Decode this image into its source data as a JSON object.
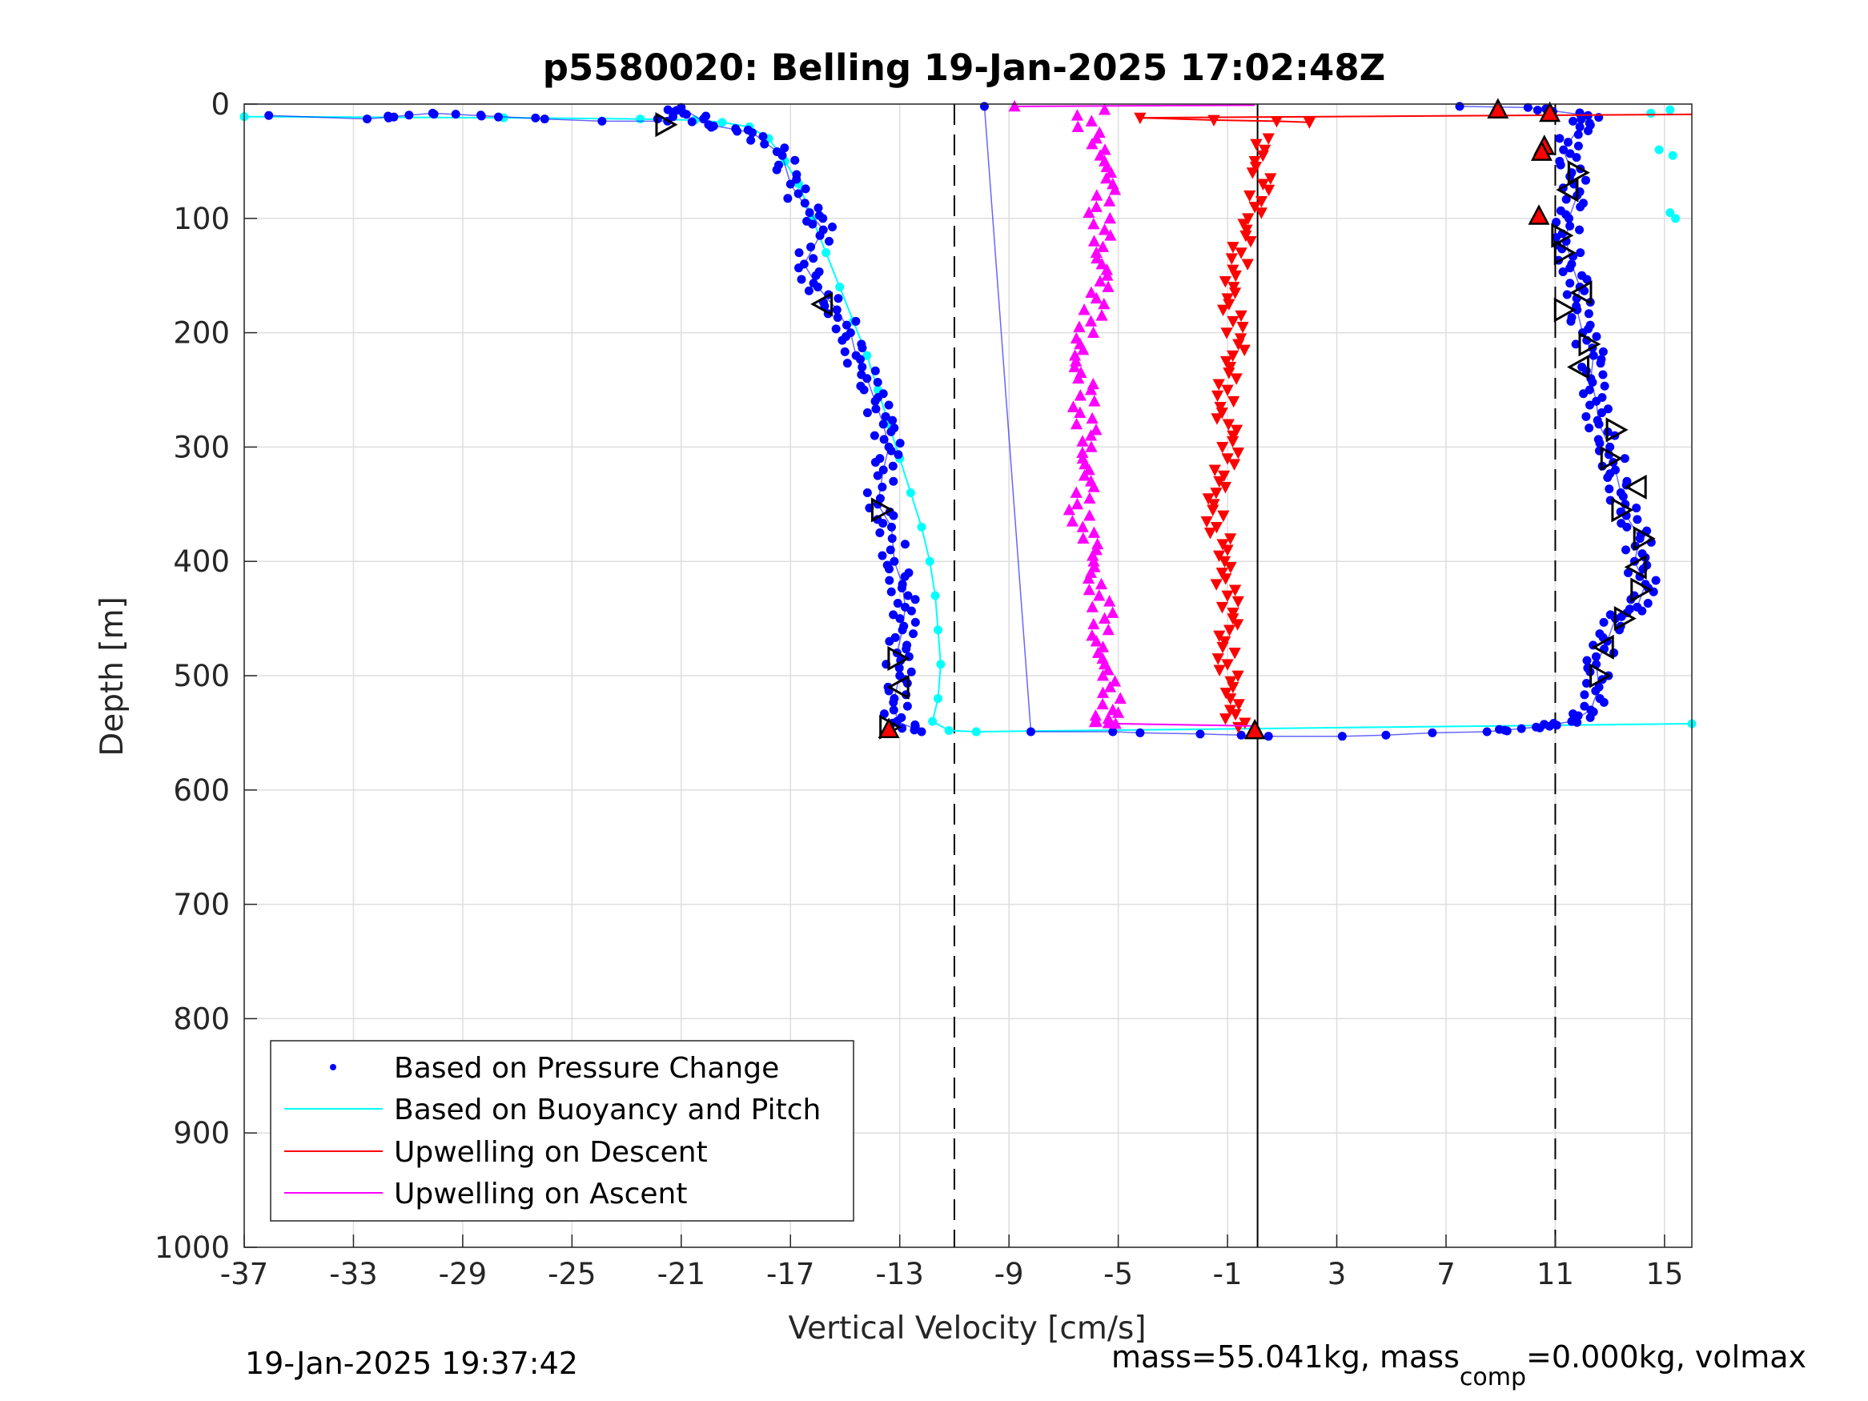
{
  "title": "p5580020: Belling 19-Jan-2025 17:02:48Z",
  "footer": {
    "timestamp": "19-Jan-2025 19:37:42",
    "mass_prefix": "mass=55.041kg, mass",
    "mass_sub": "comp",
    "mass_suffix": "=0.000kg, volmax"
  },
  "legend": {
    "entries": [
      {
        "label": "Based on Pressure Change",
        "color": "#0000ff",
        "style": "dot"
      },
      {
        "label": "Based on Buoyancy and Pitch",
        "color": "#00ffff",
        "style": "line"
      },
      {
        "label": "Upwelling on Descent",
        "color": "#ff0000",
        "style": "line"
      },
      {
        "label": "Upwelling on Ascent",
        "color": "#ff00ff",
        "style": "line"
      }
    ],
    "placement": "bottom-left"
  },
  "chart_data": {
    "type": "scatter",
    "title": "p5580020: Belling 19-Jan-2025 17:02:48Z",
    "xlabel": "Vertical Velocity [cm/s]",
    "ylabel": "Depth [m]",
    "xlim": [
      -37,
      16
    ],
    "ylim": [
      0,
      1000
    ],
    "y_reversed": true,
    "grid": true,
    "xticks": [
      "-37",
      "-33",
      "-29",
      "-25",
      "-21",
      "-17",
      "-13",
      "-9",
      "-5",
      "-1",
      "3",
      "7",
      "11",
      "15"
    ],
    "yticks": [
      "0",
      "100",
      "200",
      "300",
      "400",
      "500",
      "600",
      "700",
      "800",
      "900",
      "1000"
    ],
    "reference_lines": [
      {
        "x": -11,
        "style": "dashed",
        "color": "#000000"
      },
      {
        "x": 0.1,
        "style": "solid",
        "color": "#000000"
      },
      {
        "x": 11,
        "style": "dashed",
        "color": "#000000"
      }
    ],
    "series": [
      {
        "name": "Based on Pressure Change",
        "marker": "dot",
        "color": "#0000ff",
        "profiles": [
          {
            "segment": "descent",
            "points": [
              [
                -36.1,
                10
              ],
              [
                -32.5,
                13
              ],
              [
                -30.1,
                8
              ],
              [
                -26.0,
                13
              ],
              [
                -23.9,
                15
              ],
              [
                -21.5,
                15
              ],
              [
                -21.0,
                3
              ],
              [
                -20.0,
                18
              ],
              [
                -18.4,
                25
              ],
              [
                -17.3,
                45
              ],
              [
                -17.0,
                70
              ],
              [
                -16.3,
                95
              ],
              [
                -15.8,
                110
              ],
              [
                -16.5,
                140
              ],
              [
                -16.0,
                160
              ],
              [
                -15.3,
                180
              ],
              [
                -14.8,
                200
              ],
              [
                -14.6,
                220
              ],
              [
                -14.2,
                240
              ],
              [
                -13.9,
                260
              ],
              [
                -13.6,
                280
              ],
              [
                -13.4,
                300
              ],
              [
                -13.6,
                320
              ],
              [
                -13.8,
                350
              ],
              [
                -13.3,
                370
              ],
              [
                -13.2,
                400
              ],
              [
                -12.9,
                420
              ],
              [
                -12.8,
                440
              ],
              [
                -12.9,
                460
              ],
              [
                -13.1,
                480
              ],
              [
                -13.0,
                500
              ],
              [
                -13.2,
                520
              ],
              [
                -13.1,
                540
              ],
              [
                -12.2,
                549
              ]
            ]
          },
          {
            "segment": "ascent",
            "points": [
              [
                -9.9,
                2
              ],
              [
                -8.2,
                549
              ],
              [
                -5.2,
                549
              ],
              [
                -4.2,
                550
              ],
              [
                -2.0,
                551
              ],
              [
                -0.5,
                552
              ],
              [
                0.5,
                553
              ],
              [
                3.2,
                553
              ],
              [
                4.8,
                552
              ],
              [
                6.5,
                550
              ],
              [
                8.5,
                549
              ],
              [
                10.3,
                545
              ],
              [
                11.6,
                540
              ],
              [
                12.3,
                530
              ],
              [
                12.6,
                510
              ],
              [
                12.5,
                490
              ],
              [
                12.9,
                470
              ],
              [
                13.2,
                450
              ],
              [
                14.0,
                440
              ],
              [
                14.3,
                420
              ],
              [
                13.9,
                400
              ],
              [
                14.1,
                380
              ],
              [
                13.6,
                360
              ],
              [
                13.4,
                340
              ],
              [
                13.2,
                320
              ],
              [
                13.0,
                300
              ],
              [
                12.6,
                280
              ],
              [
                12.5,
                260
              ],
              [
                12.3,
                240
              ],
              [
                12.4,
                220
              ],
              [
                12.0,
                200
              ],
              [
                11.8,
                180
              ],
              [
                11.9,
                160
              ],
              [
                11.6,
                140
              ],
              [
                11.4,
                120
              ],
              [
                11.5,
                100
              ],
              [
                11.8,
                80
              ],
              [
                11.6,
                60
              ],
              [
                11.3,
                40
              ],
              [
                11.9,
                20
              ],
              [
                12.2,
                10
              ],
              [
                10.0,
                3
              ],
              [
                7.5,
                2
              ]
            ]
          }
        ]
      },
      {
        "name": "Based on Buoyancy and Pitch",
        "marker": "line",
        "color": "#00ffff",
        "profiles": [
          {
            "segment": "descent",
            "points": [
              [
                -37,
                11
              ],
              [
                -27.5,
                12
              ],
              [
                -22.5,
                13
              ],
              [
                -20.5,
                14
              ],
              [
                -19.5,
                16
              ],
              [
                -18.5,
                20
              ],
              [
                -17.8,
                30
              ],
              [
                -17.2,
                50
              ],
              [
                -16.7,
                70
              ],
              [
                -16.2,
                100
              ],
              [
                -15.7,
                130
              ],
              [
                -15.2,
                160
              ],
              [
                -14.7,
                190
              ],
              [
                -14.2,
                220
              ],
              [
                -13.8,
                250
              ],
              [
                -13.4,
                280
              ],
              [
                -13.0,
                310
              ],
              [
                -12.6,
                340
              ],
              [
                -12.2,
                370
              ],
              [
                -11.9,
                400
              ],
              [
                -11.7,
                430
              ],
              [
                -11.6,
                460
              ],
              [
                -11.5,
                490
              ],
              [
                -11.6,
                520
              ],
              [
                -11.8,
                540
              ],
              [
                -11.2,
                548
              ],
              [
                -10.2,
                549
              ]
            ]
          },
          {
            "segment": "ascent",
            "points": [
              [
                -10.2,
                549
              ],
              [
                16,
                542
              ]
            ]
          },
          {
            "segment": "surface",
            "points": [
              [
                14.5,
                8
              ],
              [
                15.2,
                5
              ],
              [
                14.8,
                40
              ],
              [
                15.3,
                45
              ],
              [
                15.2,
                95
              ],
              [
                15.4,
                100
              ]
            ]
          }
        ]
      },
      {
        "name": "Upwelling on Descent",
        "marker": "triangle-down",
        "color": "#ff0000",
        "points": [
          [
            -4.2,
            12
          ],
          [
            -1.5,
            14
          ],
          [
            0.8,
            15
          ],
          [
            2.0,
            16
          ],
          [
            0.5,
            30
          ],
          [
            0.0,
            50
          ],
          [
            0.3,
            70
          ],
          [
            0.0,
            90
          ],
          [
            -0.3,
            110
          ],
          [
            -0.5,
            130
          ],
          [
            -0.7,
            150
          ],
          [
            -1.0,
            170
          ],
          [
            -0.8,
            190
          ],
          [
            -0.6,
            210
          ],
          [
            -0.9,
            230
          ],
          [
            -1.0,
            250
          ],
          [
            -1.2,
            270
          ],
          [
            -0.8,
            290
          ],
          [
            -1.0,
            310
          ],
          [
            -1.3,
            330
          ],
          [
            -1.5,
            350
          ],
          [
            -1.4,
            370
          ],
          [
            -1.0,
            390
          ],
          [
            -1.2,
            410
          ],
          [
            -1.0,
            430
          ],
          [
            -0.8,
            450
          ],
          [
            -1.1,
            470
          ],
          [
            -1.0,
            490
          ],
          [
            -0.8,
            510
          ],
          [
            -0.9,
            530
          ],
          [
            -0.6,
            545
          ]
        ]
      },
      {
        "name": "Upwelling on Ascent",
        "marker": "triangle-up",
        "color": "#ff00ff",
        "points": [
          [
            -8.8,
            2
          ],
          [
            -5.5,
            5
          ],
          [
            -6.5,
            10
          ],
          [
            -5.8,
            30
          ],
          [
            -5.5,
            50
          ],
          [
            -5.2,
            70
          ],
          [
            -5.8,
            90
          ],
          [
            -5.5,
            110
          ],
          [
            -5.8,
            130
          ],
          [
            -5.4,
            150
          ],
          [
            -5.8,
            170
          ],
          [
            -6.0,
            190
          ],
          [
            -6.4,
            210
          ],
          [
            -6.6,
            230
          ],
          [
            -6.0,
            250
          ],
          [
            -6.4,
            270
          ],
          [
            -6.0,
            290
          ],
          [
            -6.3,
            310
          ],
          [
            -6.0,
            330
          ],
          [
            -6.5,
            350
          ],
          [
            -6.3,
            370
          ],
          [
            -5.8,
            390
          ],
          [
            -6.0,
            410
          ],
          [
            -5.7,
            430
          ],
          [
            -5.5,
            450
          ],
          [
            -5.8,
            470
          ],
          [
            -5.5,
            490
          ],
          [
            -5.3,
            510
          ],
          [
            -5.2,
            530
          ],
          [
            -5.8,
            540
          ],
          [
            -5.1,
            542
          ],
          [
            0.0,
            544
          ]
        ]
      },
      {
        "marker": "open-triangle",
        "color": "#000000",
        "points": [
          [
            -21.6,
            18
          ],
          [
            -15.8,
            175
          ],
          [
            -13.7,
            355
          ],
          [
            -13.1,
            485
          ],
          [
            -13.0,
            510
          ],
          [
            -13.4,
            545
          ],
          [
            11.8,
            60
          ],
          [
            11.5,
            75
          ],
          [
            11.2,
            115
          ],
          [
            11.3,
            130
          ],
          [
            12.0,
            165
          ],
          [
            11.3,
            180
          ],
          [
            12.2,
            210
          ],
          [
            11.9,
            230
          ],
          [
            13.2,
            285
          ],
          [
            13.0,
            310
          ],
          [
            14.0,
            335
          ],
          [
            13.4,
            355
          ],
          [
            14.2,
            380
          ],
          [
            14.0,
            405
          ],
          [
            14.1,
            425
          ],
          [
            13.5,
            450
          ],
          [
            12.8,
            475
          ],
          [
            12.6,
            500
          ]
        ]
      },
      {
        "marker": "filled-triangle",
        "color": "#ff0000",
        "points": [
          [
            8.9,
            5
          ],
          [
            10.8,
            8
          ],
          [
            10.6,
            37
          ],
          [
            10.5,
            42
          ],
          [
            10.4,
            98
          ],
          [
            -13.4,
            547
          ],
          [
            0.0,
            548
          ]
        ]
      }
    ]
  }
}
